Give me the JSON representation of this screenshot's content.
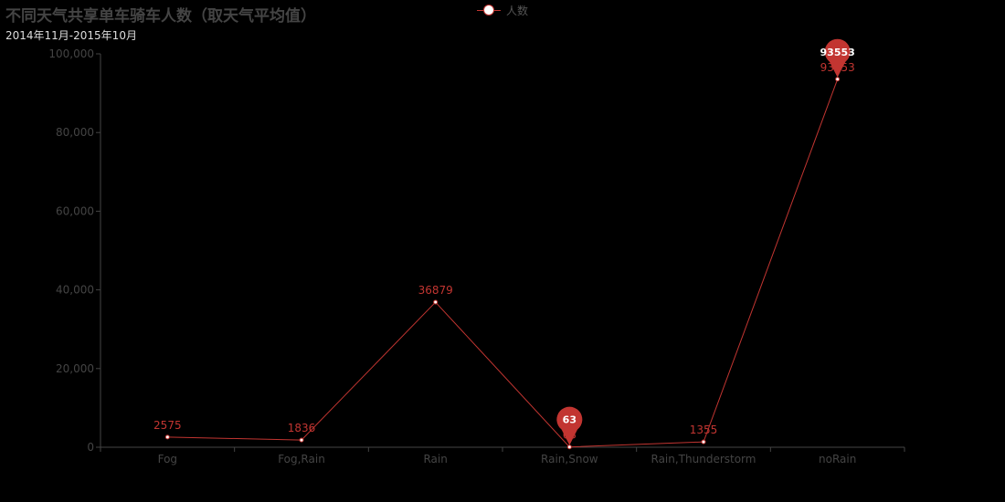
{
  "title": "不同天气共享单车骑车人数（取天气平均值）",
  "subtitle": "2014年11月-2015年10月",
  "legend": {
    "label": "人数"
  },
  "colors": {
    "series": "#c23531",
    "axis": "#444444",
    "tick_label": "#444444",
    "background": "#000000"
  },
  "chart_data": {
    "type": "line",
    "categories": [
      "Fog",
      "Fog,Rain",
      "Rain",
      "Rain,Snow",
      "Rain,Thunderstorm",
      "noRain"
    ],
    "series": [
      {
        "name": "人数",
        "values": [
          2575,
          1836,
          36879,
          63,
          1355,
          93553
        ]
      }
    ],
    "ylim": [
      0,
      100000
    ],
    "yticks": [
      "0",
      "20,000",
      "40,000",
      "60,000",
      "80,000",
      "100,000"
    ],
    "ytick_values": [
      0,
      20000,
      40000,
      60000,
      80000,
      100000
    ],
    "data_labels": [
      "2575",
      "1836",
      "36879",
      "63",
      "1355",
      "93553"
    ],
    "markers": [
      {
        "type": "min",
        "category": "Rain,Snow",
        "value": 63,
        "label": "63"
      },
      {
        "type": "max",
        "category": "noRain",
        "value": 93553,
        "label": "93553"
      }
    ],
    "grid": false,
    "legend_position": "top-center"
  }
}
